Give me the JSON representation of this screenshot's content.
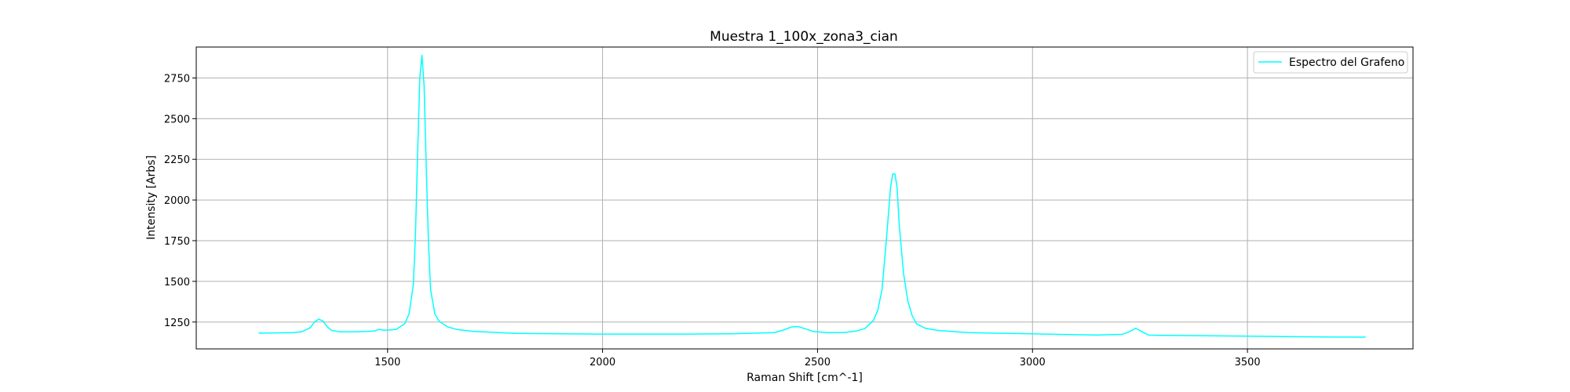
{
  "chart_data": {
    "type": "line",
    "title": "Muestra 1_100x_zona3_cian",
    "xlabel": "Raman Shift [cm^-1]",
    "ylabel": "Intensity [Arbs]",
    "xlim": [
      1055,
      3885
    ],
    "ylim": [
      1085,
      2940
    ],
    "xticks": [
      1500,
      2000,
      2500,
      3000,
      3500
    ],
    "yticks": [
      1250,
      1500,
      1750,
      2000,
      2250,
      2500,
      2750
    ],
    "grid": true,
    "legend_position": "top-right",
    "series": [
      {
        "name": "Espectro del Grafeno",
        "color": "#00ffff",
        "x": [
          1200,
          1240,
          1280,
          1300,
          1320,
          1330,
          1340,
          1350,
          1360,
          1370,
          1390,
          1420,
          1450,
          1470,
          1480,
          1490,
          1500,
          1520,
          1540,
          1550,
          1560,
          1565,
          1570,
          1575,
          1580,
          1585,
          1590,
          1595,
          1600,
          1610,
          1620,
          1640,
          1660,
          1700,
          1800,
          1900,
          2000,
          2100,
          2200,
          2300,
          2400,
          2420,
          2440,
          2455,
          2470,
          2490,
          2520,
          2560,
          2590,
          2610,
          2630,
          2640,
          2650,
          2660,
          2670,
          2675,
          2680,
          2685,
          2690,
          2700,
          2710,
          2720,
          2730,
          2750,
          2780,
          2850,
          2950,
          3050,
          3150,
          3210,
          3225,
          3240,
          3255,
          3270,
          3300,
          3400,
          3500,
          3600,
          3700,
          3775
        ],
        "y": [
          1182,
          1183,
          1185,
          1190,
          1215,
          1250,
          1268,
          1255,
          1220,
          1198,
          1190,
          1190,
          1192,
          1195,
          1205,
          1200,
          1200,
          1205,
          1240,
          1300,
          1480,
          1800,
          2300,
          2750,
          2890,
          2700,
          2200,
          1750,
          1450,
          1300,
          1255,
          1220,
          1205,
          1192,
          1180,
          1178,
          1176,
          1176,
          1176,
          1178,
          1185,
          1200,
          1220,
          1222,
          1210,
          1192,
          1185,
          1185,
          1195,
          1210,
          1260,
          1320,
          1450,
          1750,
          2080,
          2160,
          2160,
          2080,
          1850,
          1550,
          1380,
          1290,
          1240,
          1212,
          1198,
          1185,
          1180,
          1175,
          1170,
          1175,
          1190,
          1212,
          1190,
          1170,
          1168,
          1166,
          1163,
          1160,
          1158,
          1157
        ]
      }
    ]
  }
}
